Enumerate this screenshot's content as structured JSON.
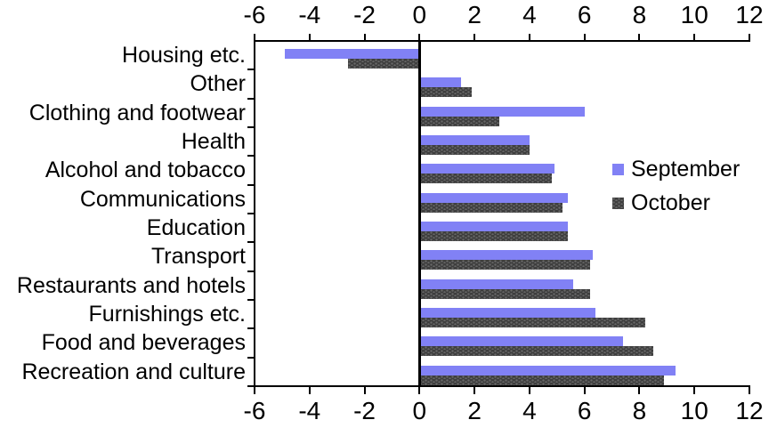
{
  "chart_data": {
    "type": "bar",
    "orientation": "horizontal",
    "title": "",
    "xlabel": "",
    "ylabel": "",
    "categories": [
      "Housing etc.",
      "Other",
      "Clothing and footwear",
      "Health",
      "Alcohol and tobacco",
      "Communications",
      "Education",
      "Transport",
      "Restaurants and hotels",
      "Furnishings etc.",
      "Food and beverages",
      "Recreation and culture"
    ],
    "series": [
      {
        "name": "September",
        "color": "#8181F5",
        "pattern": "solid",
        "values": [
          -4.9,
          1.5,
          6.0,
          4.0,
          4.9,
          5.4,
          5.4,
          6.3,
          5.6,
          6.4,
          7.4,
          9.3
        ]
      },
      {
        "name": "October",
        "color": "#3E3E3E",
        "pattern": "dots",
        "values": [
          -2.6,
          1.9,
          2.9,
          4.0,
          4.8,
          5.2,
          5.4,
          6.2,
          6.2,
          8.2,
          8.5,
          8.9
        ]
      }
    ],
    "xlim": [
      -6,
      12
    ],
    "x_ticks": [
      -6,
      -4,
      -2,
      0,
      2,
      4,
      6,
      8,
      10,
      12
    ],
    "x_axis_positions": [
      "top",
      "bottom"
    ],
    "grid": false,
    "legend_position": "middle-right",
    "axis_color": "#000000",
    "background_color": "#FFFFFF"
  }
}
